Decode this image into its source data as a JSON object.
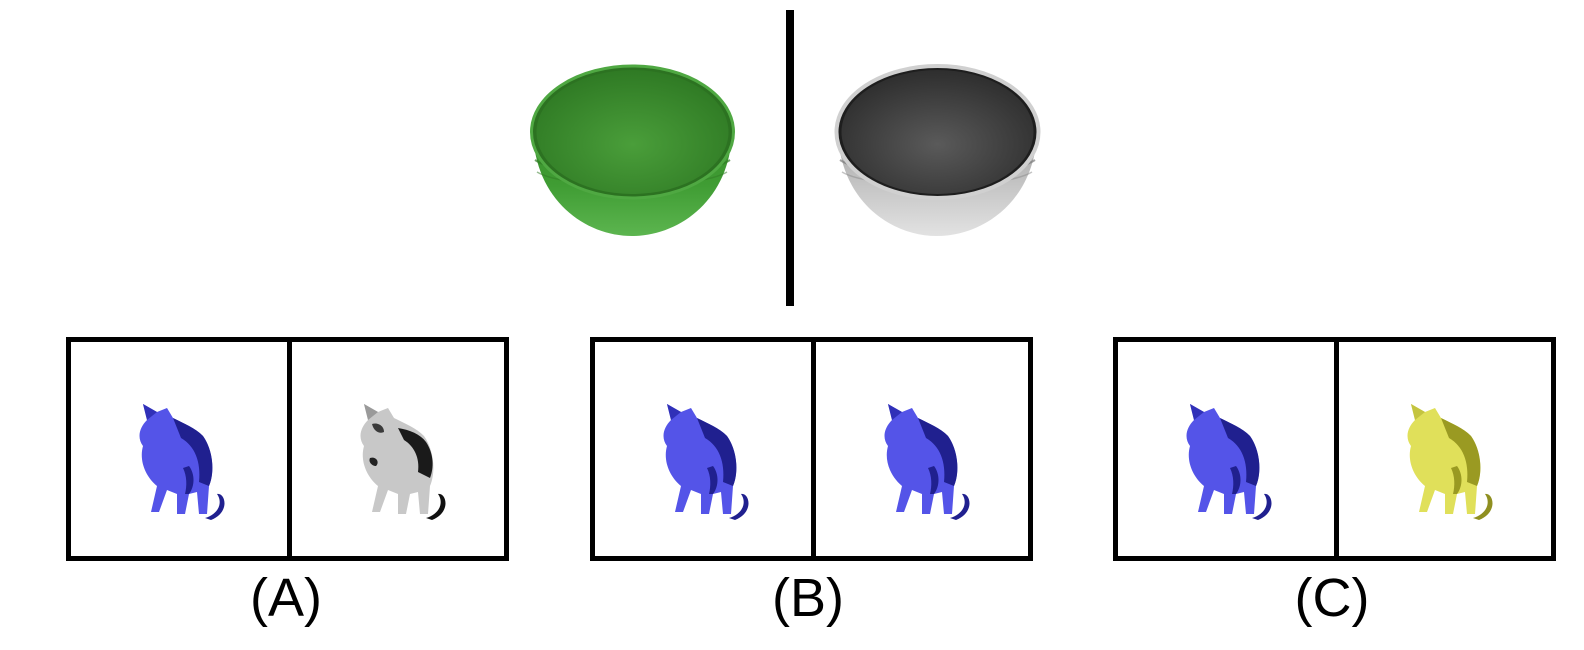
{
  "example": {
    "left_object": {
      "name": "bowl-icon",
      "color": "#3f9a33"
    },
    "right_object": {
      "name": "bowl-icon",
      "color": "grayscale"
    }
  },
  "options": [
    {
      "label": "(A)",
      "left": {
        "name": "cat-icon",
        "color": "#4848e0"
      },
      "right": {
        "name": "cat-icon",
        "color": "grayscale"
      }
    },
    {
      "label": "(B)",
      "left": {
        "name": "cat-icon",
        "color": "#4848e0"
      },
      "right": {
        "name": "cat-icon",
        "color": "#4848e0"
      }
    },
    {
      "label": "(C)",
      "left": {
        "name": "cat-icon",
        "color": "#4848e0"
      },
      "right": {
        "name": "cat-icon",
        "color": "#d9d94a"
      }
    }
  ]
}
